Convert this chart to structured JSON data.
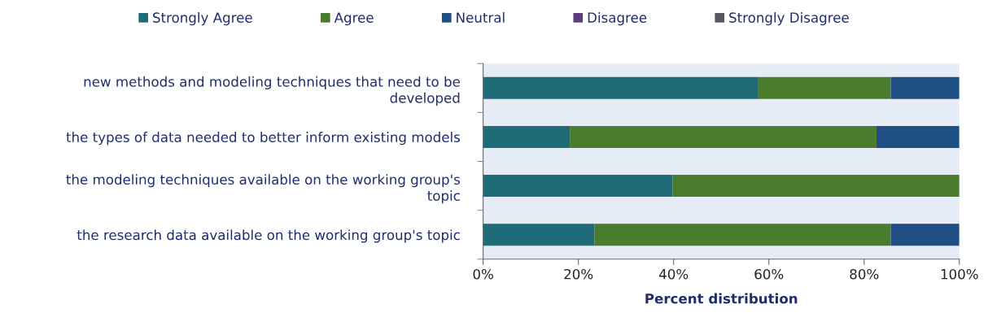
{
  "chart_data": {
    "type": "bar",
    "orientation": "horizontal",
    "stacked": true,
    "categories": [
      "new methods and modeling techniques that need to be\ndeveloped",
      "the types of data needed to better inform existing models",
      "the modeling techniques available on the working group's\ntopic",
      "the research data available on the working group's topic"
    ],
    "series": [
      {
        "name": "Strongly Agree",
        "color": "#1f6b78",
        "values": [
          57.8,
          18.2,
          39.8,
          23.4
        ]
      },
      {
        "name": "Agree",
        "color": "#4a7c2e",
        "values": [
          27.8,
          64.4,
          60.2,
          62.2
        ]
      },
      {
        "name": "Neutral",
        "color": "#1f4e85",
        "values": [
          14.4,
          17.4,
          0,
          14.4
        ]
      },
      {
        "name": "Disagree",
        "color": "#5b3f7a",
        "values": [
          0,
          0,
          0,
          0
        ]
      },
      {
        "name": "Strongly Disagree",
        "color": "#5a5560",
        "values": [
          0,
          0,
          0,
          0
        ]
      }
    ],
    "xlim": [
      0,
      100
    ],
    "xticks": [
      {
        "value": 0,
        "label": "0%"
      },
      {
        "value": 20,
        "label": "20%"
      },
      {
        "value": 40,
        "label": "40%"
      },
      {
        "value": 60,
        "label": "60%"
      },
      {
        "value": 80,
        "label": "80%"
      },
      {
        "value": 100,
        "label": "100%"
      }
    ],
    "xlabel": "Percent distribution",
    "legend": "top",
    "grid": false
  }
}
